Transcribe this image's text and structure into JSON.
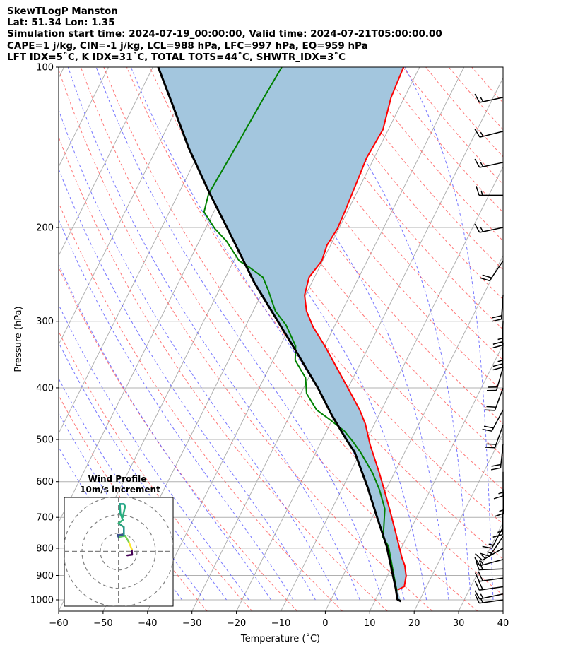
{
  "header": {
    "line1": "SkewTLogP Manston",
    "line2": "Lat: 51.34   Lon: 1.35",
    "line3": "Simulation start time: 2024-07-19_00:00:00, Valid time: 2024-07-21T05:00:00.00",
    "line4": "CAPE=1 j/kg, CIN=-1 j/kg, LCL=988 hPa, LFC=997 hPa, EQ=959 hPa",
    "line5": "LFT IDX=5˚C, K IDX=31˚C, TOTAL TOTS=44˚C, SHWTR_IDX=3˚C"
  },
  "chart_data": {
    "type": "line",
    "title": "SkewTLogP Manston",
    "xlabel": "Temperature (˚C)",
    "ylabel": "Pressure (hPa)",
    "xlim": [
      -60,
      40
    ],
    "ylim": [
      1050,
      100
    ],
    "x_ticks": [
      "−60",
      "−50",
      "−40",
      "−30",
      "−20",
      "−10",
      "0",
      "10",
      "20",
      "30",
      "40"
    ],
    "x_tick_values": [
      -60,
      -50,
      -40,
      -30,
      -20,
      -10,
      0,
      10,
      20,
      30,
      40
    ],
    "y_ticks": [
      "100",
      "200",
      "300",
      "400",
      "500",
      "600",
      "700",
      "800",
      "900",
      "1000"
    ],
    "y_tick_values": [
      100,
      200,
      300,
      400,
      500,
      600,
      700,
      800,
      900,
      1000
    ],
    "grid": true,
    "series": [
      {
        "name": "temperature",
        "color": "#ff0000",
        "points": [
          [
            100,
            -43.6
          ],
          [
            114,
            -43.0
          ],
          [
            131,
            -41.2
          ],
          [
            148,
            -41.7
          ],
          [
            164,
            -41.2
          ],
          [
            185,
            -40.6
          ],
          [
            201,
            -40.3
          ],
          [
            216,
            -40.8
          ],
          [
            231,
            -40.2
          ],
          [
            248,
            -41.2
          ],
          [
            268,
            -40.2
          ],
          [
            287,
            -38.0
          ],
          [
            307,
            -34.8
          ],
          [
            334,
            -29.9
          ],
          [
            366,
            -24.9
          ],
          [
            399,
            -20.2
          ],
          [
            440,
            -14.9
          ],
          [
            467,
            -12.1
          ],
          [
            512,
            -8.6
          ],
          [
            579,
            -3.3
          ],
          [
            629,
            0.1
          ],
          [
            681,
            3.3
          ],
          [
            746,
            6.9
          ],
          [
            835,
            11.3
          ],
          [
            861,
            12.7
          ],
          [
            901,
            14.2
          ],
          [
            944,
            15.0
          ],
          [
            958,
            13.9
          ]
        ]
      },
      {
        "name": "dewpoint",
        "color": "#008000",
        "points": [
          [
            100,
            -71.0
          ],
          [
            114,
            -71.6
          ],
          [
            143,
            -72.4
          ],
          [
            173,
            -73.2
          ],
          [
            187,
            -72.2
          ],
          [
            201,
            -67.9
          ],
          [
            212,
            -63.9
          ],
          [
            231,
            -58.8
          ],
          [
            238,
            -55.6
          ],
          [
            248,
            -51.6
          ],
          [
            262,
            -49.0
          ],
          [
            287,
            -45.0
          ],
          [
            305,
            -41.0
          ],
          [
            334,
            -36.5
          ],
          [
            355,
            -35.0
          ],
          [
            383,
            -30.7
          ],
          [
            410,
            -28.7
          ],
          [
            440,
            -24.6
          ],
          [
            460,
            -20.3
          ],
          [
            482,
            -16.0
          ],
          [
            505,
            -12.8
          ],
          [
            528,
            -10.0
          ],
          [
            578,
            -4.9
          ],
          [
            621,
            -1.5
          ],
          [
            675,
            1.9
          ],
          [
            746,
            4.2
          ],
          [
            762,
            4.6
          ],
          [
            793,
            6.9
          ],
          [
            938,
            12.9
          ],
          [
            964,
            13.9
          ]
        ]
      },
      {
        "name": "parcel",
        "color": "#000000",
        "points": [
          [
            100,
            -98.8
          ],
          [
            117,
            -91.6
          ],
          [
            142,
            -82.8
          ],
          [
            172,
            -73.2
          ],
          [
            211,
            -62.5
          ],
          [
            254,
            -52.9
          ],
          [
            300,
            -43.3
          ],
          [
            344,
            -35.4
          ],
          [
            400,
            -26.8
          ],
          [
            450,
            -20.6
          ],
          [
            500,
            -14.6
          ],
          [
            528,
            -11.3
          ],
          [
            615,
            -4.4
          ],
          [
            695,
            0.8
          ],
          [
            793,
            6.5
          ],
          [
            952,
            13.3
          ],
          [
            998,
            14.9
          ],
          [
            1006,
            15.9
          ]
        ]
      }
    ],
    "shading": {
      "between": [
        "parcel",
        "temperature"
      ],
      "color": "#a3c6de"
    },
    "wind_barbs": [
      {
        "p": 114,
        "dir": 258,
        "spd": 15
      },
      {
        "p": 132,
        "dir": 256,
        "spd": 15
      },
      {
        "p": 151,
        "dir": 258,
        "spd": 15
      },
      {
        "p": 174,
        "dir": 270,
        "spd": 15
      },
      {
        "p": 200,
        "dir": 258,
        "spd": 15
      },
      {
        "p": 231,
        "dir": 214,
        "spd": 20
      },
      {
        "p": 268,
        "dir": 184,
        "spd": 20
      },
      {
        "p": 300,
        "dir": 182,
        "spd": 25
      },
      {
        "p": 330,
        "dir": 182,
        "spd": 25
      },
      {
        "p": 366,
        "dir": 196,
        "spd": 20
      },
      {
        "p": 400,
        "dir": 200,
        "spd": 20
      },
      {
        "p": 440,
        "dir": 208,
        "spd": 20
      },
      {
        "p": 470,
        "dir": 200,
        "spd": 20
      },
      {
        "p": 510,
        "dir": 186,
        "spd": 20
      },
      {
        "p": 575,
        "dir": 180,
        "spd": 15
      },
      {
        "p": 620,
        "dir": 178,
        "spd": 15
      },
      {
        "p": 680,
        "dir": 182,
        "spd": 15
      },
      {
        "p": 730,
        "dir": 208,
        "spd": 15
      },
      {
        "p": 760,
        "dir": 214,
        "spd": 15
      },
      {
        "p": 800,
        "dir": 240,
        "spd": 15
      },
      {
        "p": 840,
        "dir": 255,
        "spd": 15
      },
      {
        "p": 875,
        "dir": 268,
        "spd": 20
      },
      {
        "p": 910,
        "dir": 262,
        "spd": 20
      },
      {
        "p": 945,
        "dir": 262,
        "spd": 20
      },
      {
        "p": 975,
        "dir": 258,
        "spd": 15
      },
      {
        "p": 1000,
        "dir": 262,
        "spd": 15
      }
    ],
    "hodograph": {
      "title": "Wind Profile",
      "subtitle": "10m/s increment",
      "ring_step_ms": 10,
      "u_v_ms": [
        [
          4.7,
          -2.1
        ],
        [
          7.3,
          -1.7
        ],
        [
          7.1,
          1.3
        ],
        [
          5.4,
          5.4
        ],
        [
          3.5,
          8.6
        ],
        [
          -0.1,
          7.9
        ],
        [
          -0.6,
          9.0
        ],
        [
          2.8,
          9.2
        ],
        [
          2.8,
          13.3
        ],
        [
          -0.1,
          15.4
        ],
        [
          2.2,
          17.2
        ],
        [
          0.9,
          20.8
        ],
        [
          0.6,
          25.9
        ],
        [
          2.8,
          25.9
        ],
        [
          3.5,
          24.6
        ],
        [
          2.2,
          18.8
        ]
      ],
      "colors": [
        "#440154",
        "#440154",
        "#fde725",
        "#7ad151",
        "#5ec962",
        "#3b528b",
        "#3b528b",
        "#21918c",
        "#2a9d7f",
        "#35b779",
        "#29af7f",
        "#22a884",
        "#1f9e89",
        "#26a886",
        "#2ab07f",
        "#2db27d"
      ]
    }
  }
}
